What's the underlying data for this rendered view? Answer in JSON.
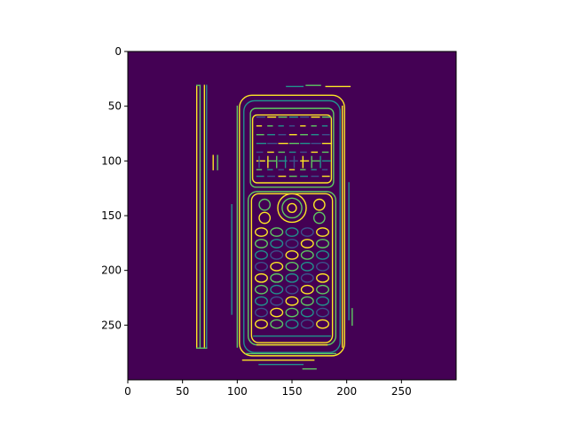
{
  "figure": {
    "title": "",
    "xlabel": "",
    "ylabel": "",
    "background": "#ffffff",
    "image_bg_color": "#440154",
    "edge_colors": [
      "#fde725",
      "#5ec962",
      "#21918c",
      "#3b528b"
    ],
    "x_axis": {
      "range": [
        0,
        300
      ],
      "ticks": [
        {
          "value": 0,
          "label": "0"
        },
        {
          "value": 50,
          "label": "50"
        },
        {
          "value": 100,
          "label": "100"
        },
        {
          "value": 150,
          "label": "150"
        },
        {
          "value": 200,
          "label": "200"
        },
        {
          "value": 250,
          "label": "250"
        }
      ]
    },
    "y_axis": {
      "range": [
        0,
        300
      ],
      "inverted": true,
      "ticks": [
        {
          "value": 0,
          "label": "0"
        },
        {
          "value": 50,
          "label": "50"
        },
        {
          "value": 100,
          "label": "100"
        },
        {
          "value": 150,
          "label": "150"
        },
        {
          "value": 200,
          "label": "200"
        },
        {
          "value": 250,
          "label": "250"
        }
      ]
    }
  }
}
